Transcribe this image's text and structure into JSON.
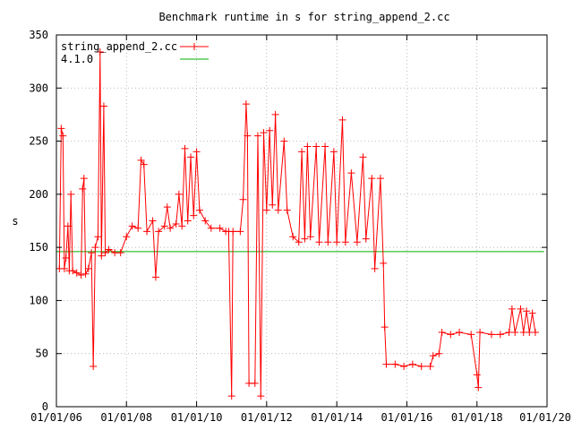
{
  "chart_data": {
    "type": "line",
    "title": "Benchmark runtime in s for string_append_2.cc",
    "xlabel": "",
    "ylabel": "s",
    "ylim": [
      0,
      350
    ],
    "xlim": [
      "2006-01-01",
      "2020-01-01"
    ],
    "y_ticks": [
      "0",
      "50",
      "100",
      "150",
      "200",
      "250",
      "300",
      "350"
    ],
    "x_ticks": [
      {
        "label": "01/01/06",
        "date": "2006-01-01"
      },
      {
        "label": "01/01/08",
        "date": "2008-01-01"
      },
      {
        "label": "01/01/10",
        "date": "2010-01-01"
      },
      {
        "label": "01/01/12",
        "date": "2012-01-01"
      },
      {
        "label": "01/01/14",
        "date": "2014-01-01"
      },
      {
        "label": "01/01/16",
        "date": "2016-01-01"
      },
      {
        "label": "01/01/18",
        "date": "2018-01-01"
      },
      {
        "label": "01/01/20",
        "date": "2020-01-01"
      }
    ],
    "grid": true,
    "legend_position": "top-left",
    "series": [
      {
        "name": "string_append_2.cc",
        "color": "#ff0000",
        "marker": "plus",
        "points": [
          [
            "2006-02-01",
            130
          ],
          [
            "2006-02-20",
            262
          ],
          [
            "2006-03-10",
            255
          ],
          [
            "2006-03-25",
            130
          ],
          [
            "2006-04-10",
            140
          ],
          [
            "2006-05-01",
            170
          ],
          [
            "2006-05-15",
            128
          ],
          [
            "2006-06-01",
            200
          ],
          [
            "2006-06-20",
            128
          ],
          [
            "2006-08-01",
            126
          ],
          [
            "2006-09-15",
            124
          ],
          [
            "2006-10-01",
            205
          ],
          [
            "2006-10-15",
            215
          ],
          [
            "2006-11-01",
            125
          ],
          [
            "2006-12-01",
            130
          ],
          [
            "2007-01-01",
            145
          ],
          [
            "2007-01-20",
            38
          ],
          [
            "2007-02-10",
            150
          ],
          [
            "2007-03-10",
            160
          ],
          [
            "2007-04-01",
            334
          ],
          [
            "2007-04-15",
            142
          ],
          [
            "2007-05-10",
            283
          ],
          [
            "2007-05-25",
            145
          ],
          [
            "2007-07-01",
            148
          ],
          [
            "2007-09-01",
            145
          ],
          [
            "2007-11-01",
            145
          ],
          [
            "2008-01-01",
            160
          ],
          [
            "2008-03-01",
            170
          ],
          [
            "2008-05-01",
            168
          ],
          [
            "2008-06-01",
            232
          ],
          [
            "2008-07-01",
            228
          ],
          [
            "2008-08-01",
            165
          ],
          [
            "2008-10-01",
            175
          ],
          [
            "2008-11-01",
            122
          ],
          [
            "2008-12-01",
            165
          ],
          [
            "2009-02-01",
            170
          ],
          [
            "2009-03-01",
            188
          ],
          [
            "2009-04-01",
            168
          ],
          [
            "2009-06-01",
            172
          ],
          [
            "2009-07-01",
            200
          ],
          [
            "2009-08-01",
            170
          ],
          [
            "2009-09-01",
            243
          ],
          [
            "2009-10-01",
            175
          ],
          [
            "2009-11-01",
            235
          ],
          [
            "2009-12-01",
            180
          ],
          [
            "2010-01-01",
            240
          ],
          [
            "2010-02-01",
            185
          ],
          [
            "2010-04-01",
            175
          ],
          [
            "2010-06-01",
            168
          ],
          [
            "2010-09-01",
            168
          ],
          [
            "2010-11-01",
            165
          ],
          [
            "2010-12-01",
            165
          ],
          [
            "2011-01-01",
            10
          ],
          [
            "2011-01-15",
            165
          ],
          [
            "2011-04-01",
            165
          ],
          [
            "2011-05-01",
            195
          ],
          [
            "2011-06-01",
            285
          ],
          [
            "2011-06-15",
            255
          ],
          [
            "2011-07-01",
            22
          ],
          [
            "2011-09-01",
            22
          ],
          [
            "2011-10-01",
            255
          ],
          [
            "2011-11-01",
            10
          ],
          [
            "2011-12-01",
            258
          ],
          [
            "2012-01-01",
            185
          ],
          [
            "2012-02-01",
            260
          ],
          [
            "2012-03-01",
            190
          ],
          [
            "2012-04-01",
            275
          ],
          [
            "2012-05-01",
            185
          ],
          [
            "2012-07-01",
            250
          ],
          [
            "2012-08-01",
            185
          ],
          [
            "2012-10-01",
            160
          ],
          [
            "2012-12-01",
            155
          ],
          [
            "2013-01-01",
            240
          ],
          [
            "2013-02-01",
            158
          ],
          [
            "2013-03-01",
            245
          ],
          [
            "2013-04-01",
            160
          ],
          [
            "2013-06-01",
            245
          ],
          [
            "2013-07-01",
            155
          ],
          [
            "2013-09-01",
            245
          ],
          [
            "2013-10-01",
            155
          ],
          [
            "2013-12-01",
            240
          ],
          [
            "2014-01-01",
            155
          ],
          [
            "2014-03-01",
            270
          ],
          [
            "2014-04-01",
            155
          ],
          [
            "2014-06-01",
            220
          ],
          [
            "2014-08-01",
            155
          ],
          [
            "2014-10-01",
            235
          ],
          [
            "2014-11-01",
            158
          ],
          [
            "2015-01-01",
            215
          ],
          [
            "2015-02-01",
            130
          ],
          [
            "2015-04-01",
            215
          ],
          [
            "2015-05-01",
            135
          ],
          [
            "2015-05-15",
            75
          ],
          [
            "2015-06-01",
            40
          ],
          [
            "2015-09-01",
            40
          ],
          [
            "2015-12-01",
            38
          ],
          [
            "2016-03-01",
            40
          ],
          [
            "2016-06-01",
            38
          ],
          [
            "2016-09-01",
            38
          ],
          [
            "2016-10-01",
            48
          ],
          [
            "2016-12-01",
            50
          ],
          [
            "2017-01-01",
            70
          ],
          [
            "2017-04-01",
            68
          ],
          [
            "2017-07-01",
            70
          ],
          [
            "2017-11-01",
            68
          ],
          [
            "2018-01-01",
            30
          ],
          [
            "2018-01-15",
            18
          ],
          [
            "2018-02-01",
            70
          ],
          [
            "2018-06-01",
            68
          ],
          [
            "2018-09-01",
            68
          ],
          [
            "2018-12-01",
            70
          ],
          [
            "2019-01-01",
            92
          ],
          [
            "2019-02-01",
            70
          ],
          [
            "2019-04-01",
            92
          ],
          [
            "2019-05-01",
            70
          ],
          [
            "2019-06-01",
            90
          ],
          [
            "2019-07-01",
            70
          ],
          [
            "2019-08-01",
            88
          ],
          [
            "2019-09-01",
            70
          ]
        ]
      },
      {
        "name": "4.1.0",
        "color": "#00b000",
        "marker": "none",
        "points": [
          [
            "2006-01-01",
            146
          ],
          [
            "2019-12-01",
            146
          ]
        ]
      }
    ]
  }
}
